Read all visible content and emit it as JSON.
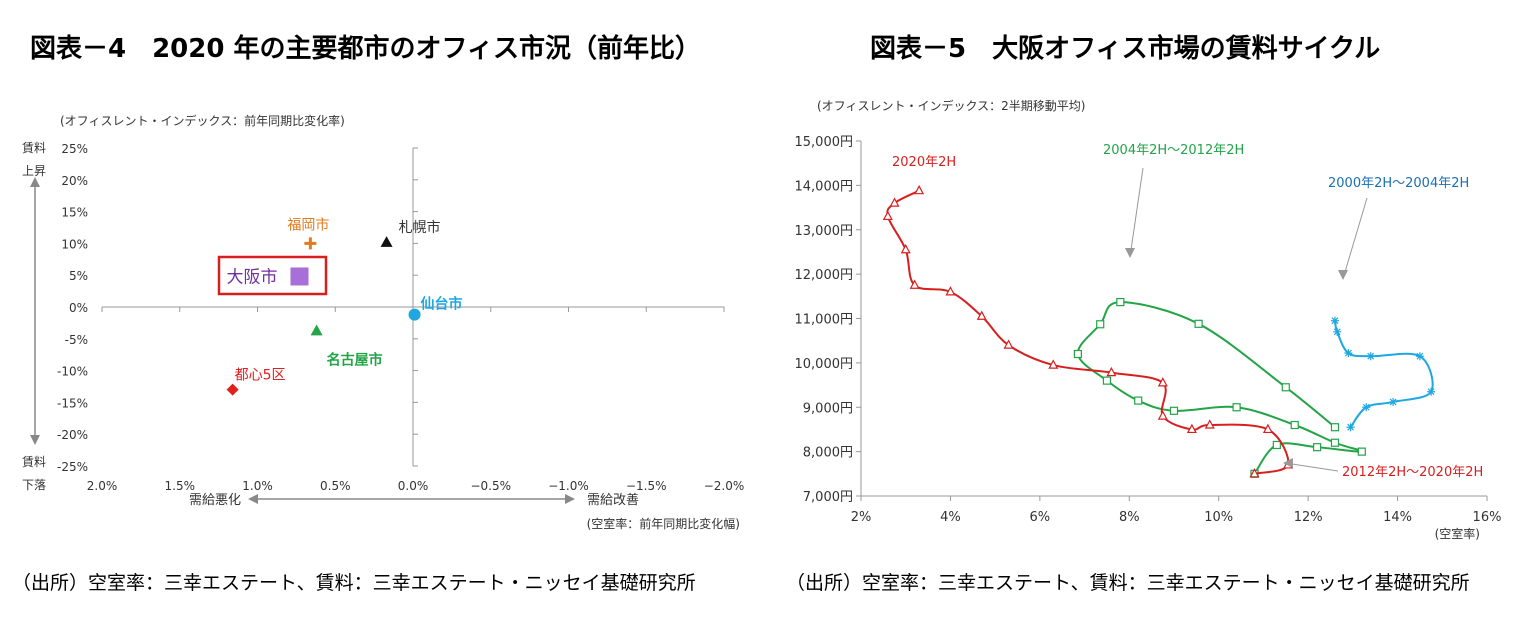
{
  "titles": {
    "left": "図表－4　2020 年の主要都市のオフィス市況（前年比）",
    "right": "図表－5　大阪オフィス市場の賃料サイクル"
  },
  "sources": {
    "left": "（出所）空室率：三幸エステート、賃料：三幸エステート・ニッセイ基礎研究所",
    "right": "（出所）空室率：三幸エステート、賃料：三幸エステート・ニッセイ基礎研究所"
  },
  "chart_data": [
    {
      "type": "scatter",
      "ylabel_note": "(オフィスレント・インデックス：前年同期比変化率)",
      "xlabel_note": "(空室率：前年同期比変化幅)",
      "y_top_label_1": "賃料",
      "y_top_label_2": "上昇",
      "y_bottom_label_1": "賃料",
      "y_bottom_label_2": "下落",
      "x_left_arrow_label": "需給悪化",
      "x_right_arrow_label": "需給改善",
      "x_reversed": true,
      "xlim": [
        2.0,
        -2.0
      ],
      "ylim": [
        -25,
        25
      ],
      "x_ticks": [
        2.0,
        1.5,
        1.0,
        0.5,
        0.0,
        -0.5,
        -1.0,
        -1.5,
        -2.0
      ],
      "x_tick_labels": [
        "2.0%",
        "1.5%",
        "1.0%",
        "0.5%",
        "0.0%",
        "−0.5%",
        "−1.0%",
        "−1.5%",
        "−2.0%"
      ],
      "y_ticks": [
        25,
        20,
        15,
        10,
        5,
        0,
        -5,
        -10,
        -15,
        -20,
        -25
      ],
      "y_tick_labels": [
        "25%",
        "20%",
        "15%",
        "10%",
        "5%",
        "0%",
        "-5%",
        "-10%",
        "-15%",
        "-20%",
        "-25%"
      ],
      "points": [
        {
          "name": "福岡市",
          "x": 0.66,
          "y": 10.0,
          "marker": "plus",
          "color": "#e07b1f",
          "label_color": "#e07b1f",
          "bold": false
        },
        {
          "name": "札幌市",
          "x": 0.17,
          "y": 10.2,
          "marker": "triangle",
          "color": "#111111",
          "label_color": "#333333",
          "bold": false
        },
        {
          "name": "大阪市",
          "x": 0.73,
          "y": 4.8,
          "marker": "square",
          "color": "#a86fd8",
          "label_color": "#7030a0",
          "bold": false,
          "highlight_box": true,
          "highlight_color": "#d81f1f"
        },
        {
          "name": "仙台市",
          "x": -0.01,
          "y": -1.2,
          "marker": "circle",
          "color": "#1ea7e1",
          "label_color": "#1ea7e1",
          "bold": true
        },
        {
          "name": "名古屋市",
          "x": 0.62,
          "y": -3.7,
          "marker": "triangle",
          "color": "#22a447",
          "label_color": "#22a447",
          "bold": true
        },
        {
          "name": "都心5区",
          "x": 1.16,
          "y": -13.0,
          "marker": "diamond",
          "color": "#e01f1f",
          "label_color": "#e01f1f",
          "bold": false
        }
      ]
    },
    {
      "type": "line",
      "ylabel_note": "(オフィスレント・インデックス：2半期移動平均)",
      "xlabel_note": "(空室率)",
      "xlim": [
        2,
        16
      ],
      "ylim": [
        7000,
        15000
      ],
      "x_ticks": [
        2,
        4,
        6,
        8,
        10,
        12,
        14,
        16
      ],
      "x_tick_labels": [
        "2%",
        "4%",
        "6%",
        "8%",
        "10%",
        "12%",
        "14%",
        "16%"
      ],
      "y_ticks": [
        7000,
        8000,
        9000,
        10000,
        11000,
        12000,
        13000,
        14000,
        15000
      ],
      "y_tick_labels": [
        "7,000円",
        "8,000円",
        "9,000円",
        "10,000円",
        "11,000円",
        "12,000円",
        "13,000円",
        "14,000円",
        "15,000円"
      ],
      "series": [
        {
          "name": "2000年2H～2004年2H",
          "color": "#1ea7e1",
          "label_color": "#1a6fb5",
          "marker": "star",
          "points": [
            [
              12.6,
              10950
            ],
            [
              12.65,
              10700
            ],
            [
              12.9,
              10220
            ],
            [
              13.4,
              10150
            ],
            [
              14.5,
              10150
            ],
            [
              14.75,
              9350
            ],
            [
              13.9,
              9120
            ],
            [
              13.3,
              9000
            ],
            [
              12.95,
              8550
            ]
          ]
        },
        {
          "name": "2004年2H～2012年2H",
          "color": "#22a447",
          "label_color": "#22a447",
          "marker": "square",
          "points": [
            [
              12.6,
              8550
            ],
            [
              11.5,
              9450
            ],
            [
              9.55,
              10880
            ],
            [
              7.8,
              11370
            ],
            [
              7.35,
              10870
            ],
            [
              6.85,
              10200
            ],
            [
              7.5,
              9600
            ],
            [
              8.2,
              9150
            ],
            [
              9.0,
              8920
            ],
            [
              10.4,
              9000
            ],
            [
              11.7,
              8600
            ],
            [
              12.6,
              8200
            ],
            [
              13.2,
              8000
            ],
            [
              12.2,
              8100
            ],
            [
              11.3,
              8150
            ],
            [
              10.8,
              7500
            ]
          ]
        },
        {
          "name": "2012年2H～2020年2H",
          "color": "#d81f1f",
          "label_color": "#d81f1f",
          "marker": "triangle",
          "points": [
            [
              10.8,
              7500
            ],
            [
              11.55,
              7700
            ],
            [
              11.1,
              8500
            ],
            [
              9.8,
              8600
            ],
            [
              9.4,
              8500
            ],
            [
              8.75,
              8800
            ],
            [
              8.75,
              9550
            ],
            [
              7.6,
              9780
            ],
            [
              6.3,
              9950
            ],
            [
              5.3,
              10400
            ],
            [
              4.7,
              11050
            ],
            [
              4.0,
              11600
            ],
            [
              3.2,
              11750
            ],
            [
              3.0,
              12550
            ],
            [
              2.6,
              13300
            ],
            [
              2.75,
              13600
            ],
            [
              3.3,
              13880
            ]
          ]
        }
      ],
      "annotations": [
        {
          "text": "2020年2H",
          "color": "#d81f1f"
        },
        {
          "text": "2004年2H～2012年2H",
          "color": "#22a447"
        },
        {
          "text": "2000年2H～2004年2H",
          "color": "#1a6fb5"
        },
        {
          "text": "2012年2H～2020年2H",
          "color": "#d81f1f"
        }
      ]
    }
  ]
}
